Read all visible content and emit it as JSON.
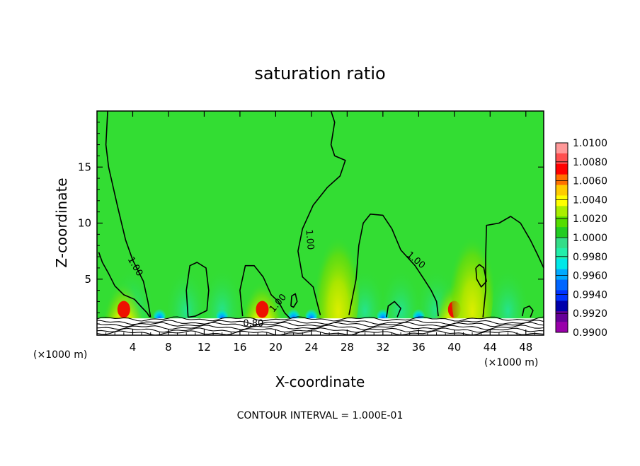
{
  "chart_data": {
    "type": "heatmap",
    "title": "saturation ratio",
    "xlabel": "X-coordinate",
    "ylabel": "Z-coordinate",
    "x_unit": "(×1000 m)",
    "xlim": [
      0,
      50
    ],
    "ylim": [
      0,
      20
    ],
    "x_ticks": [
      4,
      8,
      12,
      16,
      20,
      24,
      28,
      32,
      36,
      40,
      44,
      48
    ],
    "y_ticks": [
      5,
      10,
      15
    ],
    "footnote": "CONTOUR INTERVAL = 1.000E-01",
    "colorbar": {
      "levels": [
        "1.0100",
        "1.0080",
        "1.0060",
        "1.0040",
        "1.0020",
        "1.0000",
        "0.9980",
        "0.9960",
        "0.9940",
        "0.9920",
        "0.9900"
      ],
      "colors": [
        "#ff9999",
        "#ff5050",
        "#ff0000",
        "#ff7000",
        "#ffcc00",
        "#ffff00",
        "#aaee00",
        "#55dd00",
        "#22cc22",
        "#33dd88",
        "#22eeaa",
        "#00e8e8",
        "#00aaff",
        "#0066ff",
        "#0033ff",
        "#0000aa",
        "#660099",
        "#9900aa"
      ]
    },
    "background_color": "#33dd33",
    "contour_labels": [
      {
        "text": "1.00",
        "x": 4.0,
        "y": 6.0
      },
      {
        "text": "1.00",
        "x": 23.5,
        "y": 8.5
      },
      {
        "text": "1.00",
        "x": 35.5,
        "y": 6.5
      },
      {
        "text": "1.00",
        "x": 20.5,
        "y": 2.7
      },
      {
        "text": "0.80",
        "x": 17.5,
        "y": 0.8
      }
    ],
    "moist_plumes": [
      {
        "x": 3.0,
        "peak": 1.006
      },
      {
        "x": 18.5,
        "peak": 1.006
      },
      {
        "x": 27.0,
        "peak": 1.003
      },
      {
        "x": 40.0,
        "peak": 1.005
      },
      {
        "x": 42.0,
        "peak": 1.003
      }
    ],
    "dry_spots": [
      {
        "x": 7.0,
        "peak": 0.995
      },
      {
        "x": 14.0,
        "peak": 0.996
      },
      {
        "x": 22.0,
        "peak": 0.995
      },
      {
        "x": 24.0,
        "peak": 0.994
      },
      {
        "x": 32.0,
        "peak": 0.996
      },
      {
        "x": 36.0,
        "peak": 0.996
      }
    ],
    "contour_lines": [
      {
        "name": "left",
        "points": [
          [
            0.2,
            7.4
          ],
          [
            0.6,
            6.5
          ],
          [
            1.3,
            5.5
          ],
          [
            2.0,
            4.4
          ],
          [
            3.0,
            3.6
          ],
          [
            4.2,
            3.2
          ],
          [
            5.0,
            2.5
          ],
          [
            5.6,
            2.0
          ],
          [
            5.9,
            1.6
          ]
        ]
      },
      {
        "name": "left-upper",
        "points": [
          [
            1.2,
            20.0
          ],
          [
            1.0,
            17.0
          ],
          [
            1.3,
            15.0
          ],
          [
            2.3,
            11.5
          ],
          [
            3.2,
            8.5
          ],
          [
            4.0,
            6.7
          ],
          [
            5.2,
            4.8
          ],
          [
            5.7,
            3.0
          ],
          [
            6.0,
            1.6
          ]
        ]
      },
      {
        "name": "bubble-10",
        "points": [
          [
            10.2,
            1.6
          ],
          [
            10.0,
            4.0
          ],
          [
            10.4,
            6.2
          ],
          [
            11.2,
            6.5
          ],
          [
            12.2,
            6.0
          ],
          [
            12.5,
            4.0
          ],
          [
            12.3,
            2.2
          ],
          [
            11.0,
            1.7
          ],
          [
            10.2,
            1.6
          ]
        ]
      },
      {
        "name": "mid-left",
        "points": [
          [
            16.3,
            1.7
          ],
          [
            16.0,
            4.0
          ],
          [
            16.6,
            6.2
          ],
          [
            17.6,
            6.2
          ],
          [
            18.6,
            5.2
          ],
          [
            19.5,
            3.6
          ],
          [
            20.3,
            3.0
          ],
          [
            21.0,
            2.0
          ],
          [
            21.6,
            1.5
          ]
        ]
      },
      {
        "name": "small-21",
        "points": [
          [
            21.7,
            2.6
          ],
          [
            21.8,
            3.5
          ],
          [
            22.2,
            3.7
          ],
          [
            22.4,
            3.0
          ],
          [
            22.0,
            2.5
          ],
          [
            21.7,
            2.6
          ]
        ]
      },
      {
        "name": "center",
        "points": [
          [
            26.2,
            20.0
          ],
          [
            26.6,
            19.0
          ],
          [
            26.2,
            17.0
          ],
          [
            26.6,
            16.0
          ],
          [
            27.8,
            15.6
          ],
          [
            27.2,
            14.2
          ],
          [
            25.8,
            13.2
          ],
          [
            24.2,
            11.6
          ],
          [
            23.0,
            9.5
          ],
          [
            22.5,
            7.5
          ],
          [
            23.0,
            5.2
          ],
          [
            24.2,
            4.3
          ],
          [
            24.6,
            3.0
          ],
          [
            25.0,
            1.8
          ]
        ]
      },
      {
        "name": "right-1",
        "points": [
          [
            28.2,
            1.8
          ],
          [
            29.0,
            5.0
          ],
          [
            29.3,
            8.0
          ],
          [
            29.8,
            10.0
          ],
          [
            30.6,
            10.8
          ],
          [
            32.0,
            10.7
          ],
          [
            33.0,
            9.5
          ],
          [
            34.0,
            7.6
          ],
          [
            35.6,
            6.2
          ],
          [
            36.6,
            5.0
          ],
          [
            37.4,
            4.0
          ],
          [
            38.0,
            3.0
          ],
          [
            38.2,
            1.7
          ]
        ]
      },
      {
        "name": "bubble-33",
        "points": [
          [
            32.4,
            1.6
          ],
          [
            32.6,
            2.6
          ],
          [
            33.3,
            3.0
          ],
          [
            34.0,
            2.4
          ],
          [
            33.6,
            1.6
          ]
        ]
      },
      {
        "name": "bubble-43",
        "points": [
          [
            42.4,
            6.0
          ],
          [
            42.5,
            5.0
          ],
          [
            43.0,
            4.3
          ],
          [
            43.6,
            4.8
          ],
          [
            43.3,
            6.0
          ],
          [
            42.8,
            6.3
          ],
          [
            42.4,
            6.0
          ]
        ]
      },
      {
        "name": "right-2",
        "points": [
          [
            43.2,
            1.6
          ],
          [
            43.5,
            4.0
          ],
          [
            43.5,
            7.0
          ],
          [
            43.6,
            9.8
          ],
          [
            45.0,
            10.0
          ],
          [
            46.3,
            10.6
          ],
          [
            47.4,
            10.0
          ],
          [
            48.5,
            8.5
          ],
          [
            49.3,
            7.2
          ],
          [
            50.0,
            6.0
          ]
        ]
      },
      {
        "name": "bubble-48",
        "points": [
          [
            47.6,
            1.7
          ],
          [
            47.8,
            2.4
          ],
          [
            48.4,
            2.6
          ],
          [
            48.8,
            2.2
          ],
          [
            48.5,
            1.6
          ]
        ]
      }
    ]
  }
}
